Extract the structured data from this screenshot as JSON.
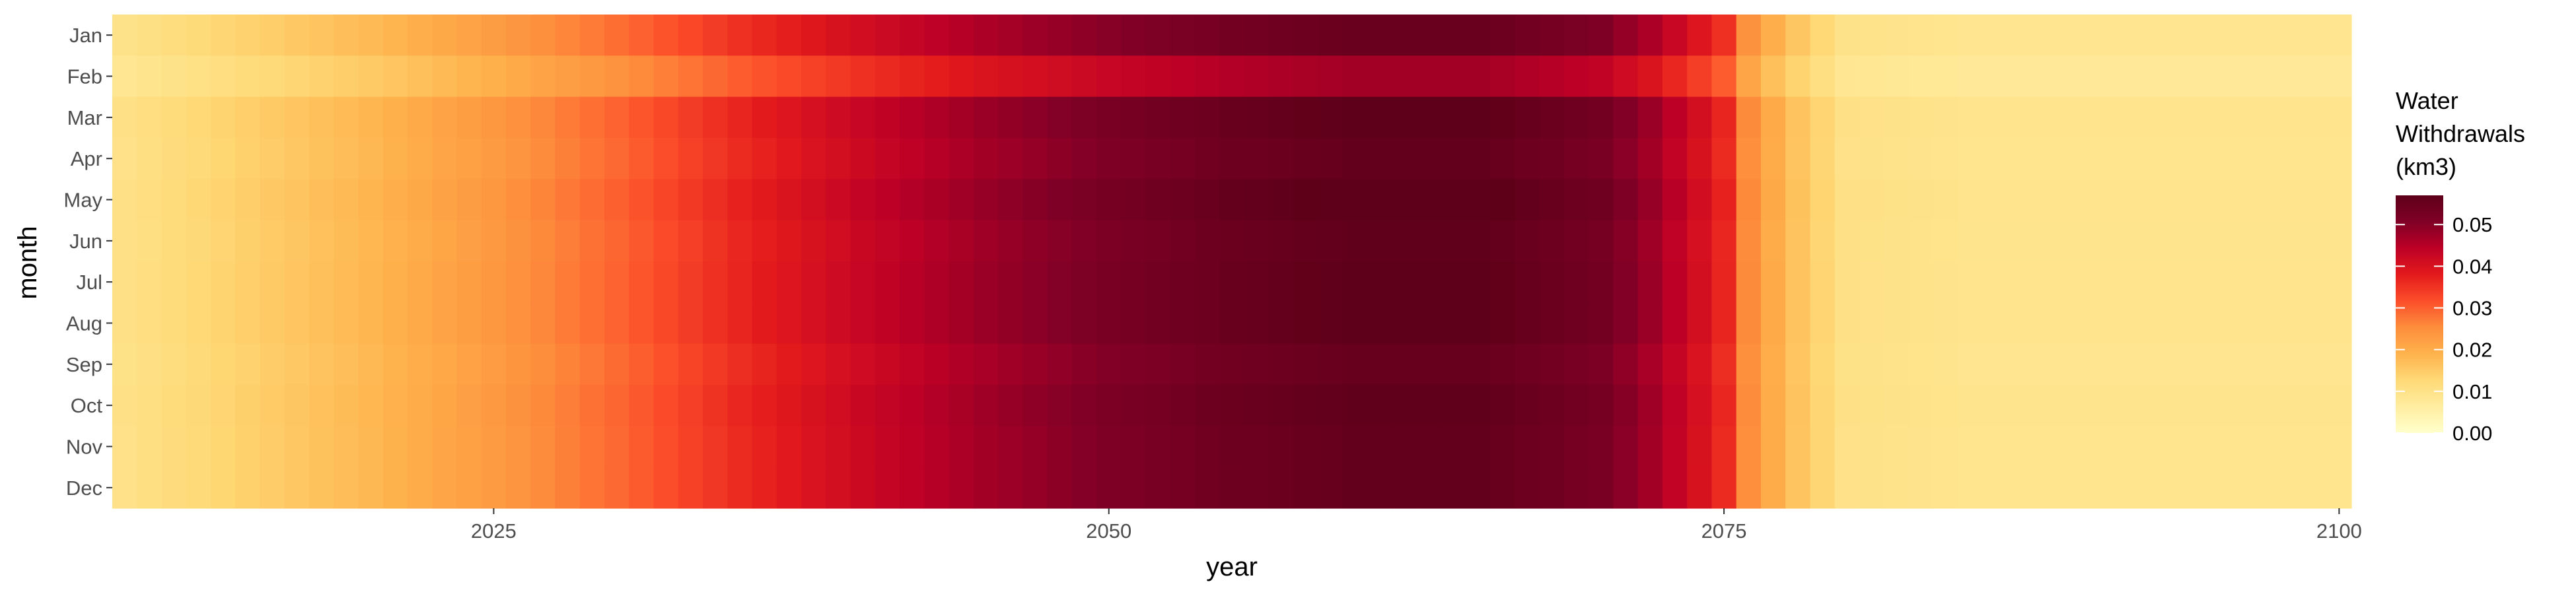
{
  "chart_data": {
    "type": "heatmap",
    "title": "",
    "xlabel": "year",
    "ylabel": "month",
    "xlim": [
      2010,
      2100
    ],
    "x_ticks": [
      2025,
      2050,
      2075,
      2100
    ],
    "x_tick_labels": [
      "2025",
      "2050",
      "2075",
      "2100"
    ],
    "years": {
      "start": 2010,
      "end": 2100,
      "step": 1
    },
    "months": [
      "Jan",
      "Feb",
      "Mar",
      "Apr",
      "May",
      "Jun",
      "Jul",
      "Aug",
      "Sep",
      "Oct",
      "Nov",
      "Dec"
    ],
    "annual_profile_years": [
      2010,
      2015,
      2020,
      2025,
      2030,
      2035,
      2040,
      2045,
      2050,
      2055,
      2060,
      2065,
      2070,
      2072,
      2074,
      2075,
      2076,
      2077,
      2078,
      2079,
      2080,
      2085,
      2090,
      2095,
      2100
    ],
    "annual_profile_values": [
      0.01,
      0.014,
      0.018,
      0.023,
      0.029,
      0.036,
      0.042,
      0.047,
      0.051,
      0.054,
      0.056,
      0.056,
      0.052,
      0.047,
      0.04,
      0.036,
      0.025,
      0.02,
      0.016,
      0.013,
      0.01,
      0.009,
      0.009,
      0.009,
      0.009
    ],
    "month_factors": {
      "Jan": 0.98,
      "Feb": 0.84,
      "Mar": 1.02,
      "Apr": 1.0,
      "May": 1.03,
      "Jun": 1.01,
      "Jul": 1.02,
      "Aug": 1.02,
      "Sep": 0.99,
      "Oct": 1.01,
      "Nov": 1.0,
      "Dec": 1.0
    },
    "legend": {
      "title": [
        "Water",
        "Withdrawals",
        "(km3)"
      ],
      "min": 0.0,
      "max": 0.057,
      "ticks": [
        0.0,
        0.01,
        0.02,
        0.03,
        0.04,
        0.05
      ],
      "tick_labels": [
        "0.00",
        "0.01",
        "0.02",
        "0.03",
        "0.04",
        "0.05"
      ],
      "placement": "right"
    },
    "colormap": [
      "#ffffcc",
      "#ffeda0",
      "#fed976",
      "#feb24c",
      "#fd8d3c",
      "#fc4e2a",
      "#e31a1c",
      "#bd0026",
      "#800026",
      "#5e0019"
    ],
    "grid": false
  }
}
